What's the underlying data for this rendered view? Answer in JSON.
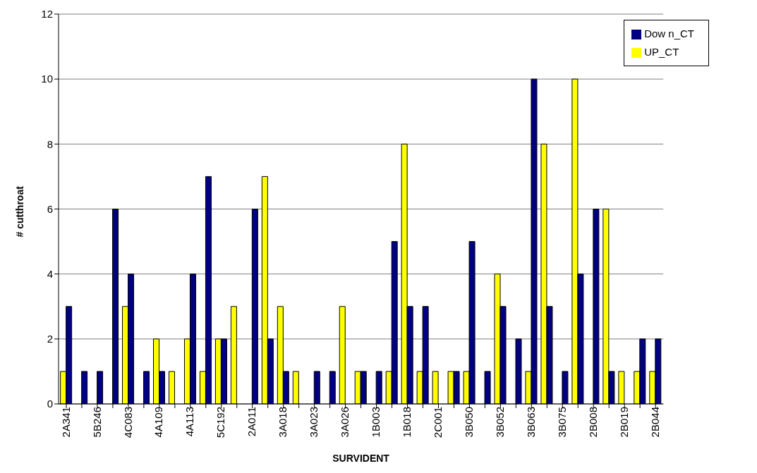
{
  "chart_data": {
    "type": "bar",
    "xlabel": "SURVIDENT",
    "ylabel": "# cutthroat",
    "categories": [
      "2A341",
      null,
      "5B246",
      null,
      "4C083",
      null,
      "4A109",
      null,
      "4A113",
      null,
      "5C192",
      null,
      "2A011",
      null,
      "3A018",
      null,
      "3A023",
      null,
      "3A026",
      null,
      "1B003",
      null,
      "1B018",
      null,
      "2C001",
      null,
      "3B050",
      null,
      "3B052",
      null,
      "3B063",
      null,
      "3B075",
      null,
      "2B008",
      null,
      "2B019",
      null,
      "2B044"
    ],
    "series": [
      {
        "name": "UP_CT",
        "color": "#ffff00",
        "values": [
          1,
          0,
          0,
          0,
          3,
          0,
          2,
          1,
          2,
          1,
          2,
          3,
          0,
          7,
          3,
          1,
          0,
          0,
          3,
          1,
          0,
          1,
          8,
          1,
          1,
          1,
          1,
          0,
          4,
          0,
          1,
          8,
          0,
          10,
          0,
          6,
          1,
          1,
          1
        ]
      },
      {
        "name": "Dow n_CT",
        "color": "#000080",
        "values": [
          3,
          1,
          1,
          6,
          4,
          1,
          1,
          0,
          4,
          7,
          2,
          0,
          6,
          2,
          1,
          0,
          1,
          1,
          0,
          1,
          1,
          5,
          3,
          3,
          0,
          1,
          5,
          1,
          3,
          2,
          10,
          3,
          1,
          4,
          6,
          1,
          0,
          2,
          2
        ]
      }
    ],
    "ylim": [
      0,
      12
    ],
    "yticks": [
      0,
      2,
      4,
      6,
      8,
      10,
      12
    ],
    "grid": "y",
    "legend": "top right"
  }
}
